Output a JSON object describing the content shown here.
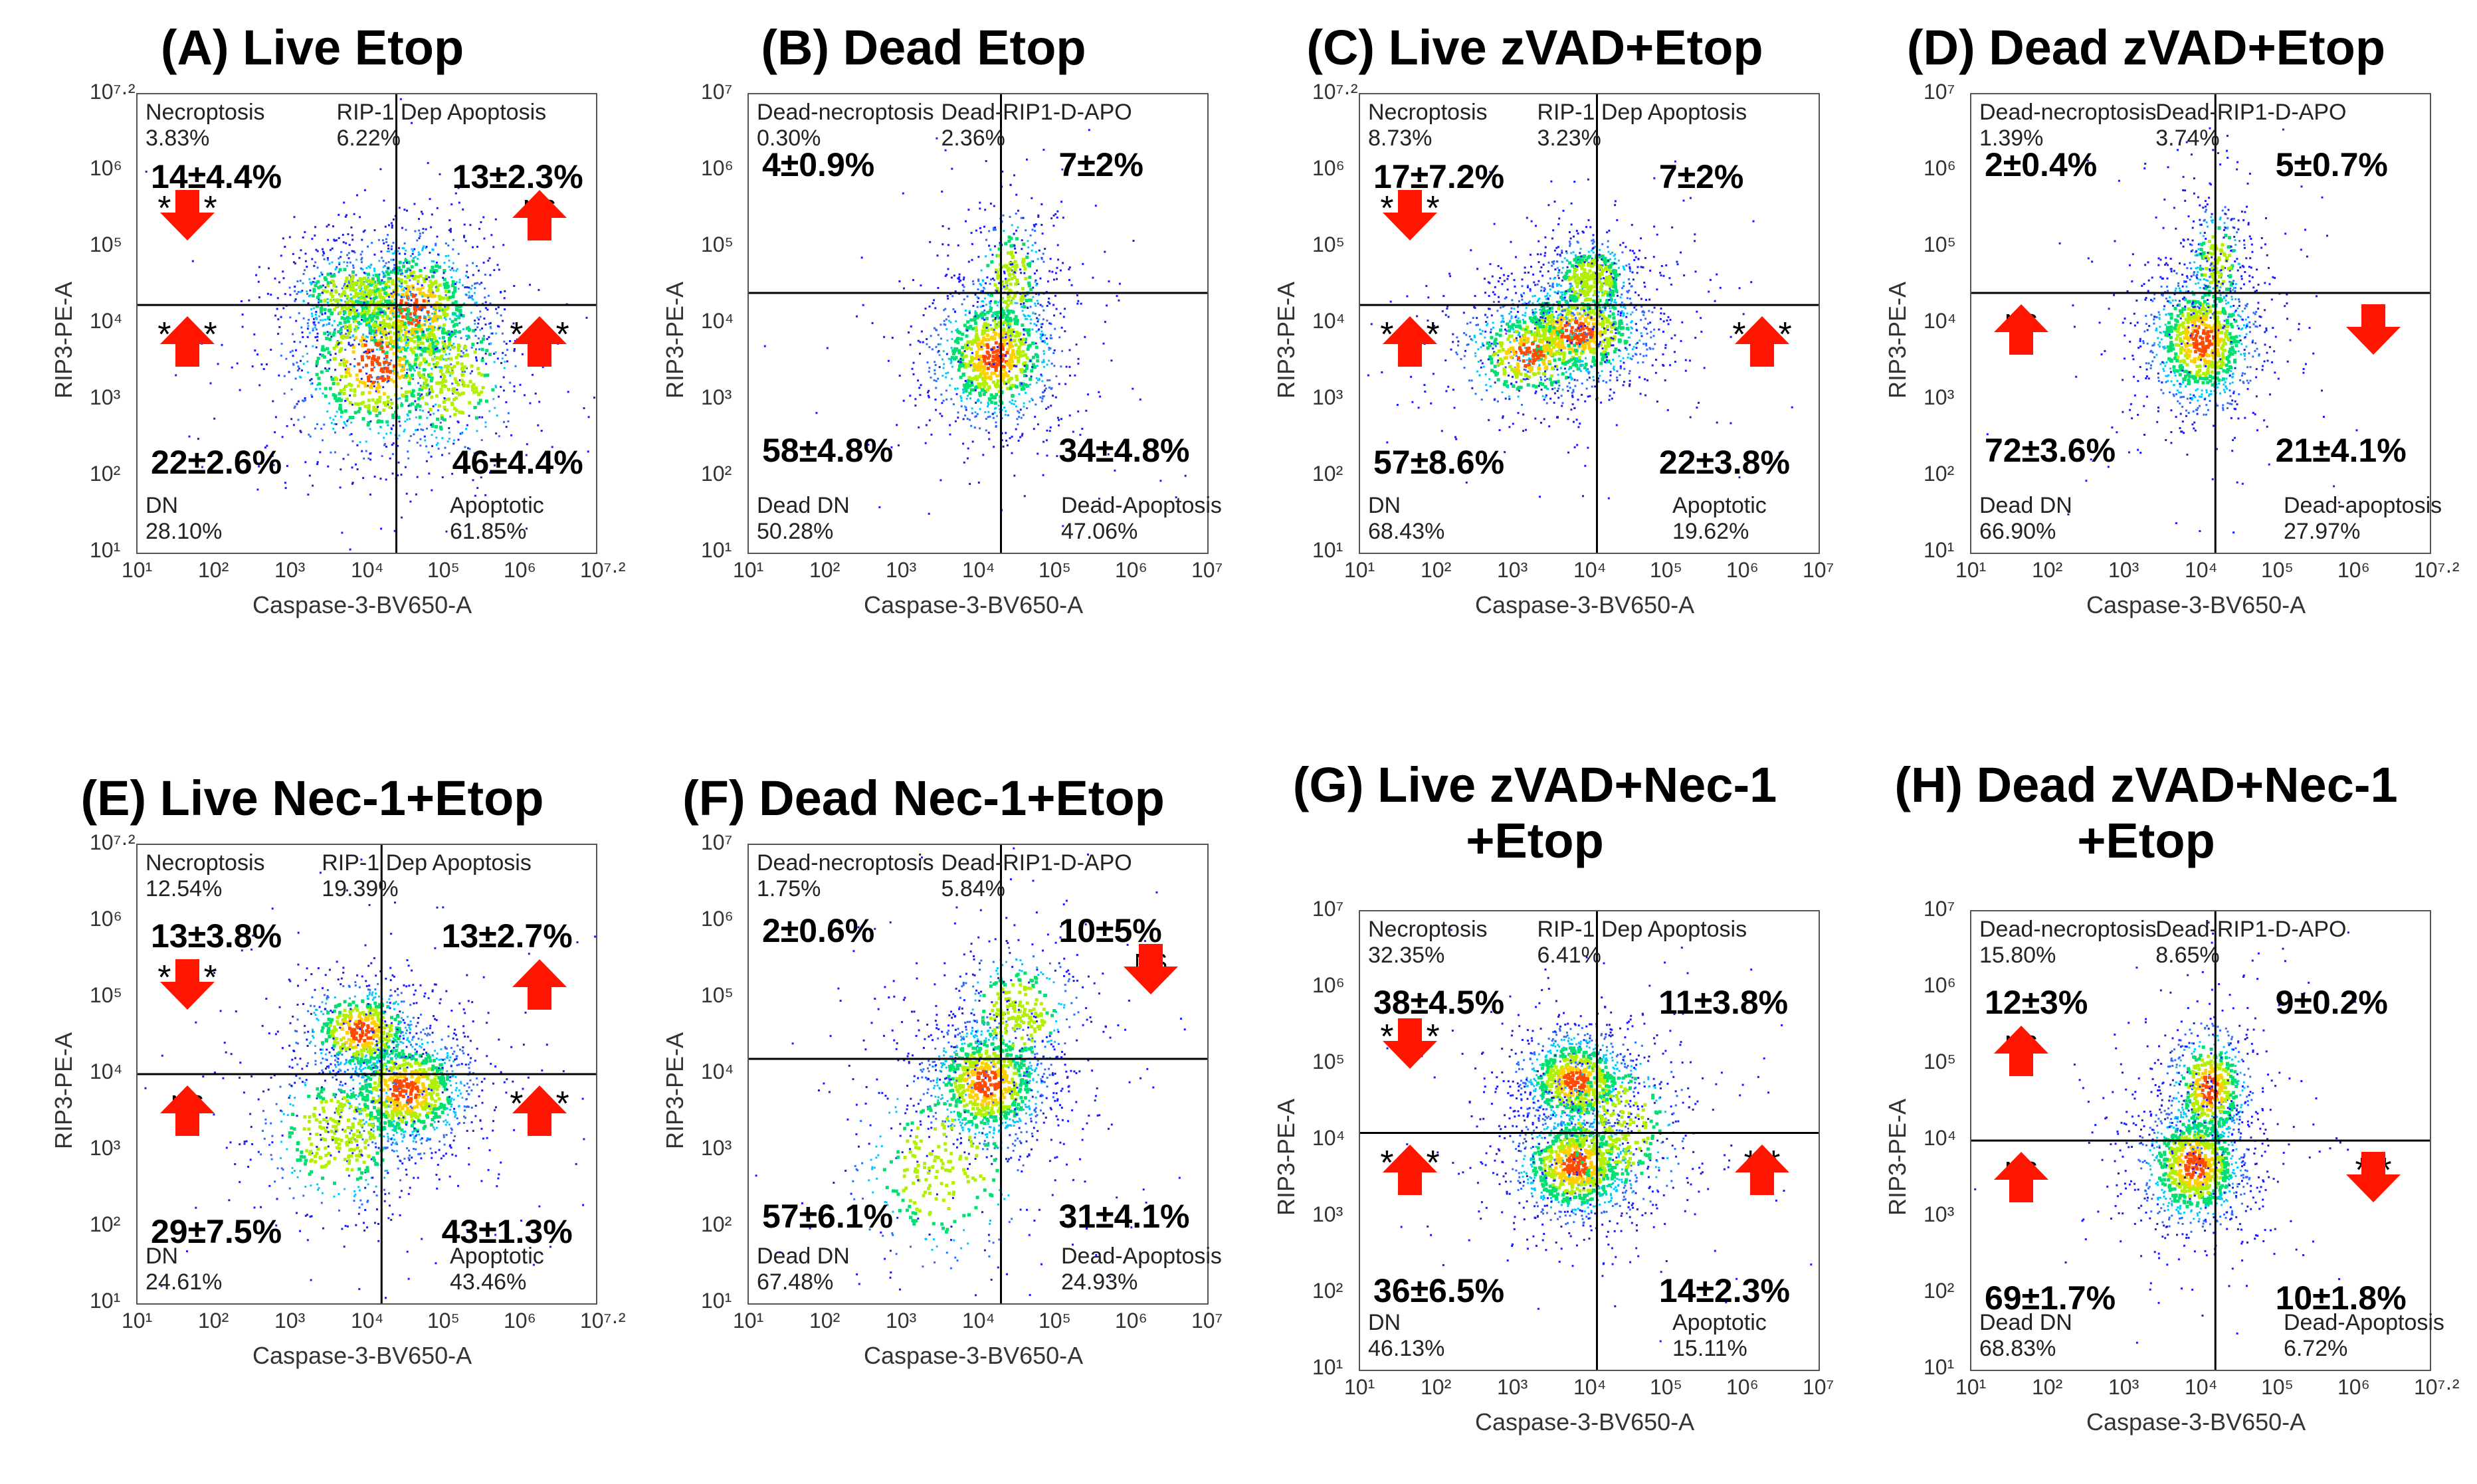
{
  "figure": {
    "colors": {
      "arrow": "#ff1500",
      "axis": "#555555",
      "gate": "#000000",
      "density_low": "#1a1aff"
    },
    "icon": "red-arrow-icon"
  },
  "chart_data": [
    {
      "type": "scatter",
      "subtype": "flow-cytometry-density-quadrant",
      "title": "(A) Live Etop",
      "xlabel": "Caspase-3-BV650-A",
      "ylabel": "RIP3-PE-A",
      "x_ticks": [
        "10¹",
        "10²",
        "10³",
        "10⁴",
        "10⁵",
        "10⁶",
        "10⁷·²"
      ],
      "y_ticks": [
        "10¹",
        "10²",
        "10³",
        "10⁴",
        "10⁵",
        "10⁶",
        "10⁷·²"
      ],
      "x_log_range": [
        1,
        7.2
      ],
      "y_log_range": [
        1,
        7.2
      ],
      "gate_x_log": 4.5,
      "gate_y_log": 4.35,
      "quadrants": {
        "tl": {
          "label": "Necroptosis",
          "percent": "3.83%",
          "stat": "14±4.4%",
          "arrow": "down",
          "sig": "* * *",
          "sig_pos": "top"
        },
        "tr": {
          "label": "RIP-1 Dep Apoptosis",
          "percent": "6.22%",
          "stat": "13±2.3%",
          "arrow": "up",
          "sig": "NS",
          "sig_pos": "bottom"
        },
        "bl": {
          "label": "DN",
          "percent": "28.10%",
          "stat": "22±2.6%",
          "arrow": "up",
          "sig": "* * *",
          "sig_pos": "bottom"
        },
        "br": {
          "label": "Apoptotic",
          "percent": "61.85%",
          "stat": "46±4.4%",
          "arrow": "up",
          "sig": "* * *",
          "sig_pos": "bottom"
        }
      },
      "density": [
        {
          "x": 4.7,
          "y": 4.3,
          "sx": 0.55,
          "sy": 0.55,
          "w": 1.0
        },
        {
          "x": 4.2,
          "y": 3.6,
          "sx": 0.65,
          "sy": 0.7,
          "w": 0.8
        },
        {
          "x": 3.9,
          "y": 4.5,
          "sx": 0.45,
          "sy": 0.3,
          "w": 0.4
        },
        {
          "x": 5.2,
          "y": 3.4,
          "sx": 0.5,
          "sy": 0.6,
          "w": 0.4
        }
      ]
    },
    {
      "type": "scatter",
      "subtype": "flow-cytometry-density-quadrant",
      "title": "(B) Dead Etop",
      "xlabel": "Caspase-3-BV650-A",
      "ylabel": "RIP3-PE-A",
      "x_ticks": [
        "10¹",
        "10²",
        "10³",
        "10⁴",
        "10⁵",
        "10⁶",
        "10⁷"
      ],
      "y_ticks": [
        "10¹",
        "10²",
        "10³",
        "10⁴",
        "10⁵",
        "10⁶",
        "10⁷"
      ],
      "x_log_range": [
        1,
        7
      ],
      "y_log_range": [
        1,
        7
      ],
      "gate_x_log": 4.3,
      "gate_y_log": 4.4,
      "quadrants": {
        "tl": {
          "label": "Dead-necroptosis",
          "percent": "0.30%",
          "stat": "4±0.9%",
          "arrow": "",
          "sig": "",
          "sig_pos": ""
        },
        "tr": {
          "label": "Dead-RIP1-D-APO",
          "percent": "2.36%",
          "stat": "7±2%",
          "arrow": "",
          "sig": "",
          "sig_pos": ""
        },
        "bl": {
          "label": "Dead DN",
          "percent": "50.28%",
          "stat": "58±4.8%",
          "arrow": "",
          "sig": "",
          "sig_pos": ""
        },
        "br": {
          "label": "Dead-Apoptosis",
          "percent": "47.06%",
          "stat": "34±4.8%",
          "arrow": "",
          "sig": "",
          "sig_pos": ""
        }
      },
      "density": [
        {
          "x": 4.2,
          "y": 3.6,
          "sx": 0.45,
          "sy": 0.5,
          "w": 1.0
        },
        {
          "x": 4.4,
          "y": 4.6,
          "sx": 0.25,
          "sy": 0.45,
          "w": 0.25
        }
      ]
    },
    {
      "type": "scatter",
      "subtype": "flow-cytometry-density-quadrant",
      "title": "(C) Live zVAD+Etop",
      "xlabel": "Caspase-3-BV650-A",
      "ylabel": "RIP3-PE-A",
      "x_ticks": [
        "10¹",
        "10²",
        "10³",
        "10⁴",
        "10⁵",
        "10⁶",
        "10⁷"
      ],
      "y_ticks": [
        "10¹",
        "10²",
        "10³",
        "10⁴",
        "10⁵",
        "10⁶",
        "10⁷·²"
      ],
      "x_log_range": [
        1,
        7
      ],
      "y_log_range": [
        1,
        7.2
      ],
      "gate_x_log": 4.1,
      "gate_y_log": 4.35,
      "quadrants": {
        "tl": {
          "label": "Necroptosis",
          "percent": "8.73%",
          "stat": "17±7.2%",
          "arrow": "down",
          "sig": "* * *",
          "sig_pos": "top"
        },
        "tr": {
          "label": "RIP-1 Dep Apoptosis",
          "percent": "3.23%",
          "stat": "7±2%",
          "arrow": "",
          "sig": "",
          "sig_pos": ""
        },
        "bl": {
          "label": "DN",
          "percent": "68.43%",
          "stat": "57±8.6%",
          "arrow": "up",
          "sig": "* * *",
          "sig_pos": "bottom"
        },
        "br": {
          "label": "Apoptotic",
          "percent": "19.62%",
          "stat": "22±3.8%",
          "arrow": "up",
          "sig": "* * *",
          "sig_pos": "bottom"
        }
      },
      "density": [
        {
          "x": 3.8,
          "y": 4.0,
          "sx": 0.55,
          "sy": 0.4,
          "w": 1.0
        },
        {
          "x": 4.0,
          "y": 4.7,
          "sx": 0.3,
          "sy": 0.3,
          "w": 0.45
        },
        {
          "x": 3.2,
          "y": 3.7,
          "sx": 0.5,
          "sy": 0.4,
          "w": 0.5
        }
      ]
    },
    {
      "type": "scatter",
      "subtype": "flow-cytometry-density-quadrant",
      "title": "(D) Dead zVAD+Etop",
      "xlabel": "Caspase-3-BV650-A",
      "ylabel": "RIP3-PE-A",
      "x_ticks": [
        "10¹",
        "10²",
        "10³",
        "10⁴",
        "10⁵",
        "10⁶",
        "10⁷·²"
      ],
      "y_ticks": [
        "10¹",
        "10²",
        "10³",
        "10⁴",
        "10⁵",
        "10⁶",
        "10⁷"
      ],
      "x_log_range": [
        1,
        7.2
      ],
      "y_log_range": [
        1,
        7
      ],
      "gate_x_log": 4.3,
      "gate_y_log": 4.4,
      "quadrants": {
        "tl": {
          "label": "Dead-necroptosis",
          "percent": "1.39%",
          "stat": "2±0.4%",
          "arrow": "",
          "sig": "",
          "sig_pos": ""
        },
        "tr": {
          "label": "Dead-RIP1-D-APO",
          "percent": "3.74%",
          "stat": "5±0.7%",
          "arrow": "",
          "sig": "",
          "sig_pos": ""
        },
        "bl": {
          "label": "Dead DN",
          "percent": "66.90%",
          "stat": "72±3.6%",
          "arrow": "up",
          "sig": "NS",
          "sig_pos": "bottom"
        },
        "br": {
          "label": "Dead-apoptosis",
          "percent": "27.97%",
          "stat": "21±4.1%",
          "arrow": "down",
          "sig": "*",
          "sig_pos": "bottom"
        }
      },
      "density": [
        {
          "x": 4.1,
          "y": 3.8,
          "sx": 0.4,
          "sy": 0.5,
          "w": 1.0
        },
        {
          "x": 4.3,
          "y": 4.8,
          "sx": 0.2,
          "sy": 0.4,
          "w": 0.2
        }
      ]
    },
    {
      "type": "scatter",
      "subtype": "flow-cytometry-density-quadrant",
      "title": "(E) Live Nec-1+Etop",
      "xlabel": "Caspase-3-BV650-A",
      "ylabel": "RIP3-PE-A",
      "x_ticks": [
        "10¹",
        "10²",
        "10³",
        "10⁴",
        "10⁵",
        "10⁶",
        "10⁷·²"
      ],
      "y_ticks": [
        "10¹",
        "10²",
        "10³",
        "10⁴",
        "10⁵",
        "10⁶",
        "10⁷·²"
      ],
      "x_log_range": [
        1,
        7.2
      ],
      "y_log_range": [
        1,
        7.2
      ],
      "gate_x_log": 4.3,
      "gate_y_log": 4.1,
      "quadrants": {
        "tl": {
          "label": "Necroptosis",
          "percent": "12.54%",
          "stat": "13±3.8%",
          "arrow": "down",
          "sig": "* * *",
          "sig_pos": "bottom"
        },
        "tr": {
          "label": "RIP-1 Dep Apoptosis",
          "percent": "19.39%",
          "stat": "13±2.7%",
          "arrow": "up",
          "sig": "*",
          "sig_pos": "bottom"
        },
        "bl": {
          "label": "DN",
          "percent": "24.61%",
          "stat": "29±7.5%",
          "arrow": "up",
          "sig": "NS",
          "sig_pos": "bottom"
        },
        "br": {
          "label": "Apoptotic",
          "percent": "43.46%",
          "stat": "43±1.3%",
          "arrow": "up",
          "sig": "* * *",
          "sig_pos": "bottom"
        }
      },
      "density": [
        {
          "x": 4.6,
          "y": 3.9,
          "sx": 0.5,
          "sy": 0.45,
          "w": 1.0
        },
        {
          "x": 4.0,
          "y": 4.7,
          "sx": 0.45,
          "sy": 0.35,
          "w": 0.6
        },
        {
          "x": 3.7,
          "y": 3.3,
          "sx": 0.55,
          "sy": 0.55,
          "w": 0.45
        }
      ]
    },
    {
      "type": "scatter",
      "subtype": "flow-cytometry-density-quadrant",
      "title": "(F) Dead Nec-1+Etop",
      "xlabel": "Caspase-3-BV650-A",
      "ylabel": "RIP3-PE-A",
      "x_ticks": [
        "10¹",
        "10²",
        "10³",
        "10⁴",
        "10⁵",
        "10⁶",
        "10⁷"
      ],
      "y_ticks": [
        "10¹",
        "10²",
        "10³",
        "10⁴",
        "10⁵",
        "10⁶",
        "10⁷"
      ],
      "x_log_range": [
        1,
        7
      ],
      "y_log_range": [
        1,
        7
      ],
      "gate_x_log": 4.3,
      "gate_y_log": 4.2,
      "quadrants": {
        "tl": {
          "label": "Dead-necroptosis",
          "percent": "1.75%",
          "stat": "2±0.6%",
          "arrow": "",
          "sig": "",
          "sig_pos": ""
        },
        "tr": {
          "label": "Dead-RIP1-D-APO",
          "percent": "5.84%",
          "stat": "10±5%",
          "arrow": "down",
          "sig": "NS",
          "sig_pos": "bottom"
        },
        "bl": {
          "label": "Dead DN",
          "percent": "67.48%",
          "stat": "57±6.1%",
          "arrow": "",
          "sig": "",
          "sig_pos": ""
        },
        "br": {
          "label": "Dead-Apoptosis",
          "percent": "24.93%",
          "stat": "31±4.1%",
          "arrow": "",
          "sig": "",
          "sig_pos": ""
        }
      },
      "density": [
        {
          "x": 4.1,
          "y": 3.9,
          "sx": 0.45,
          "sy": 0.45,
          "w": 1.0
        },
        {
          "x": 4.5,
          "y": 4.8,
          "sx": 0.4,
          "sy": 0.45,
          "w": 0.35
        },
        {
          "x": 3.5,
          "y": 2.8,
          "sx": 0.6,
          "sy": 0.7,
          "w": 0.3
        }
      ]
    },
    {
      "type": "scatter",
      "subtype": "flow-cytometry-density-quadrant",
      "title": "(G) Live zVAD+Nec-1\n+Etop",
      "xlabel": "Caspase-3-BV650-A",
      "ylabel": "RIP3-PE-A",
      "x_ticks": [
        "10¹",
        "10²",
        "10³",
        "10⁴",
        "10⁵",
        "10⁶",
        "10⁷"
      ],
      "y_ticks": [
        "10¹",
        "10²",
        "10³",
        "10⁴",
        "10⁵",
        "10⁶",
        "10⁷"
      ],
      "x_log_range": [
        1,
        7
      ],
      "y_log_range": [
        1,
        7
      ],
      "gate_x_log": 4.1,
      "gate_y_log": 4.1,
      "quadrants": {
        "tl": {
          "label": "Necroptosis",
          "percent": "32.35%",
          "stat": "38±4.5%",
          "arrow": "down",
          "sig": "* * *",
          "sig_pos": "bottom"
        },
        "tr": {
          "label": "RIP-1 Dep Apoptosis",
          "percent": "6.41%",
          "stat": "11±3.8%",
          "arrow": "",
          "sig": "",
          "sig_pos": ""
        },
        "bl": {
          "label": "DN",
          "percent": "46.13%",
          "stat": "36±6.5%",
          "arrow": "up",
          "sig": "* * *",
          "sig_pos": "bottom"
        },
        "br": {
          "label": "Apoptotic",
          "percent": "15.11%",
          "stat": "14±2.3%",
          "arrow": "up",
          "sig": "* *",
          "sig_pos": "bottom"
        }
      },
      "density": [
        {
          "x": 3.8,
          "y": 4.8,
          "sx": 0.4,
          "sy": 0.35,
          "w": 0.9
        },
        {
          "x": 3.8,
          "y": 3.7,
          "sx": 0.45,
          "sy": 0.4,
          "w": 1.0
        },
        {
          "x": 4.3,
          "y": 4.2,
          "sx": 0.5,
          "sy": 0.6,
          "w": 0.4
        }
      ]
    },
    {
      "type": "scatter",
      "subtype": "flow-cytometry-density-quadrant",
      "title": "(H) Dead zVAD+Nec-1\n+Etop",
      "xlabel": "Caspase-3-BV650-A",
      "ylabel": "RIP3-PE-A",
      "x_ticks": [
        "10¹",
        "10²",
        "10³",
        "10⁴",
        "10⁵",
        "10⁶",
        "10⁷·²"
      ],
      "y_ticks": [
        "10¹",
        "10²",
        "10³",
        "10⁴",
        "10⁵",
        "10⁶",
        "10⁷"
      ],
      "x_log_range": [
        1,
        7.2
      ],
      "y_log_range": [
        1,
        7
      ],
      "gate_x_log": 4.3,
      "gate_y_log": 4.0,
      "quadrants": {
        "tl": {
          "label": "Dead-necroptosis",
          "percent": "15.80%",
          "stat": "12±3%",
          "arrow": "up",
          "sig": "NS",
          "sig_pos": "bottom"
        },
        "tr": {
          "label": "Dead-RIP1-D-APO",
          "percent": "8.65%",
          "stat": "9±0.2%",
          "arrow": "",
          "sig": "",
          "sig_pos": ""
        },
        "bl": {
          "label": "Dead DN",
          "percent": "68.83%",
          "stat": "69±1.7%",
          "arrow": "up",
          "sig": "NS",
          "sig_pos": "bottom"
        },
        "br": {
          "label": "Dead-Apoptosis",
          "percent": "6.72%",
          "stat": "10±1.8%",
          "arrow": "down",
          "sig": "* *",
          "sig_pos": "bottom"
        }
      },
      "density": [
        {
          "x": 4.0,
          "y": 3.7,
          "sx": 0.4,
          "sy": 0.45,
          "w": 1.0
        },
        {
          "x": 4.2,
          "y": 4.7,
          "sx": 0.3,
          "sy": 0.45,
          "w": 0.55
        }
      ]
    }
  ]
}
